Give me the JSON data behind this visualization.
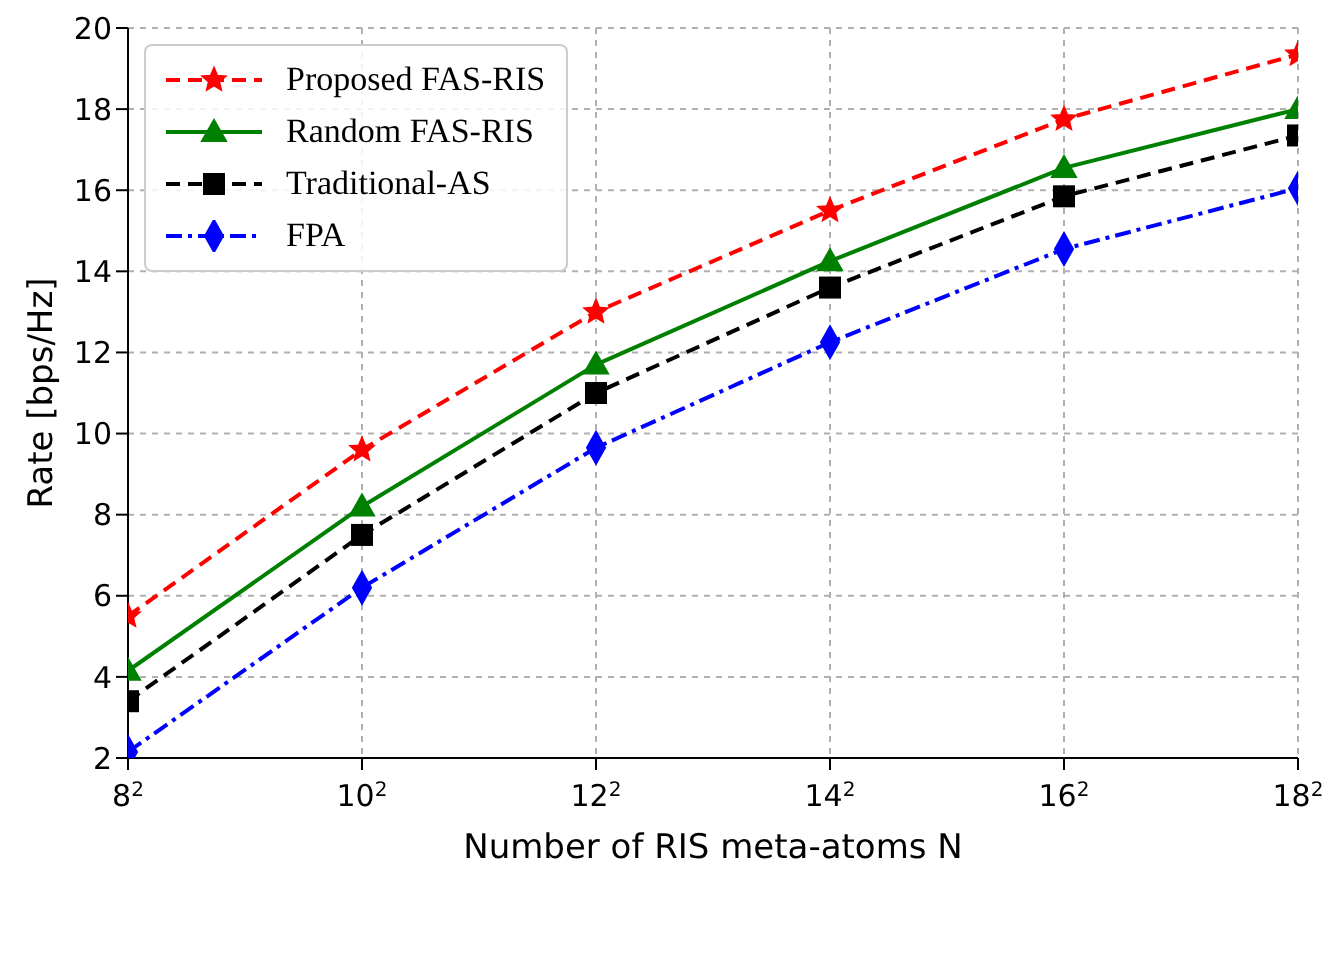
{
  "chart_data": {
    "type": "line",
    "xlabel": "Number of RIS meta-atoms N",
    "ylabel": "Rate [bps/Hz]",
    "categories": [
      "8$^{2}$",
      "10$^{2}$",
      "12$^{2}$",
      "14$^{2}$",
      "16$^{2}$",
      "18$^{2}$"
    ],
    "series": [
      {
        "name": "Proposed FAS-RIS",
        "color": "#ff0000",
        "marker": "star",
        "line_style": "dashed",
        "values": [
          5.5,
          9.6,
          13.0,
          15.5,
          17.75,
          19.35
        ]
      },
      {
        "name": "Random FAS-RIS",
        "color": "#008000",
        "marker": "triangle",
        "line_style": "solid",
        "values": [
          4.15,
          8.2,
          11.7,
          14.25,
          16.55,
          18.0
        ]
      },
      {
        "name": "Traditional-AS",
        "color": "#000000",
        "marker": "square",
        "line_style": "dashed",
        "values": [
          3.4,
          7.5,
          11.0,
          13.6,
          15.85,
          17.35
        ]
      },
      {
        "name": "FPA",
        "color": "#0000ff",
        "marker": "diamond",
        "line_style": "dashdot",
        "values": [
          2.15,
          6.2,
          9.65,
          12.25,
          14.55,
          16.05
        ]
      }
    ],
    "ylim": [
      2,
      20
    ],
    "yticks": [
      2,
      4,
      6,
      8,
      10,
      12,
      14,
      16,
      18,
      20
    ],
    "grid": true,
    "legend": "top left"
  }
}
